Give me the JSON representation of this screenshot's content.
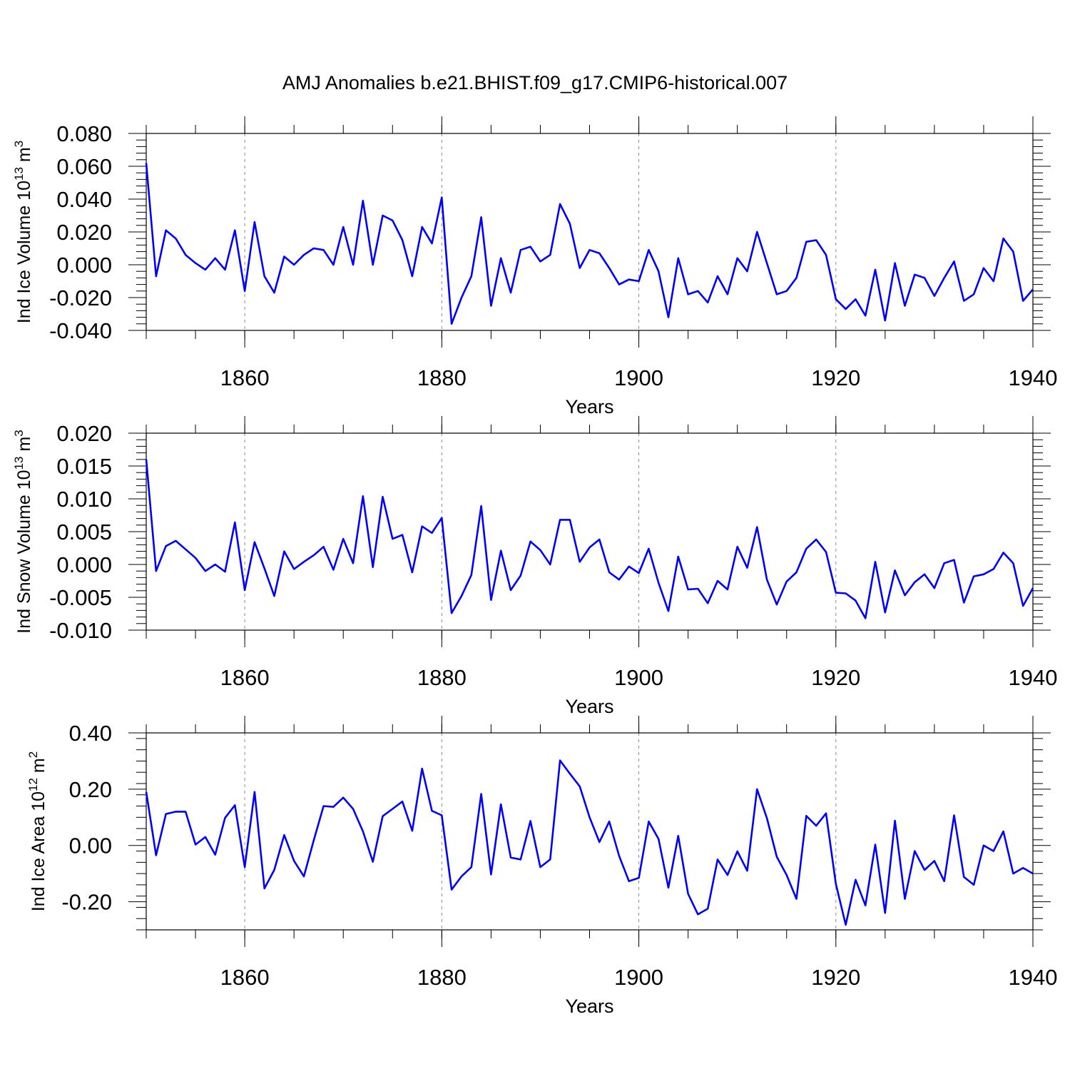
{
  "title": "AMJ Anomalies b.e21.BHIST.f09_g17.CMIP6-historical.007",
  "chart_data": [
    {
      "type": "line",
      "id": "ice-volume",
      "ylabel": "Ind Ice Volume 10",
      "ylabel_sup": "13",
      "ylabel_unit": " m",
      "ylabel_unit_sup": "3",
      "xlabel": "Years",
      "xlim": [
        1850,
        1940
      ],
      "ylim": [
        -0.04,
        0.08
      ],
      "yticks": [
        -0.04,
        -0.02,
        0.0,
        0.02,
        0.04,
        0.06,
        0.08
      ],
      "ytick_labels": [
        "-0.040",
        "-0.020",
        "0.000",
        "0.020",
        "0.040",
        "0.060",
        "0.080"
      ],
      "xticks": [
        1860,
        1880,
        1900,
        1920,
        1940
      ],
      "xtick_labels": [
        "1860",
        "1880",
        "1900",
        "1920",
        "1940"
      ],
      "grid": "dashed vertical at major x ticks",
      "x_start": 1850,
      "series": [
        {
          "name": "Ind Ice Volume",
          "color": "#0000ff",
          "values": [
            0.062,
            -0.007,
            0.021,
            0.016,
            0.006,
            0.001,
            -0.003,
            0.004,
            -0.003,
            0.021,
            -0.016,
            0.026,
            -0.007,
            -0.017,
            0.005,
            0.0,
            0.006,
            0.01,
            0.009,
            0.0,
            0.023,
            0.0,
            0.039,
            0.0,
            0.03,
            0.027,
            0.015,
            -0.007,
            0.023,
            0.013,
            0.041,
            -0.036,
            -0.02,
            -0.007,
            0.029,
            -0.025,
            0.004,
            -0.017,
            0.009,
            0.011,
            0.002,
            0.006,
            0.037,
            0.025,
            -0.002,
            0.009,
            0.007,
            -0.002,
            -0.012,
            -0.009,
            -0.01,
            0.009,
            -0.004,
            -0.032,
            0.004,
            -0.018,
            -0.016,
            -0.023,
            -0.007,
            -0.018,
            0.004,
            -0.004,
            0.02,
            0.001,
            -0.018,
            -0.016,
            -0.008,
            0.014,
            0.015,
            0.006,
            -0.021,
            -0.027,
            -0.021,
            -0.031,
            -0.003,
            -0.034,
            0.001,
            -0.025,
            -0.006,
            -0.008,
            -0.019,
            -0.008,
            0.002,
            -0.022,
            -0.018,
            -0.002,
            -0.01,
            0.016,
            0.008,
            -0.022,
            -0.015
          ]
        }
      ]
    },
    {
      "type": "line",
      "id": "snow-volume",
      "ylabel": "Ind Snow Volume 10",
      "ylabel_sup": "13",
      "ylabel_unit": " m",
      "ylabel_unit_sup": "3",
      "xlabel": "Years",
      "xlim": [
        1850,
        1940
      ],
      "ylim": [
        -0.01,
        0.02
      ],
      "yticks": [
        -0.01,
        -0.005,
        0.0,
        0.005,
        0.01,
        0.015,
        0.02
      ],
      "ytick_labels": [
        "-0.010",
        "-0.005",
        "0.000",
        "0.005",
        "0.010",
        "0.015",
        "0.020"
      ],
      "xticks": [
        1860,
        1880,
        1900,
        1920,
        1940
      ],
      "xtick_labels": [
        "1860",
        "1880",
        "1900",
        "1920",
        "1940"
      ],
      "grid": "dashed vertical at major x ticks",
      "x_start": 1850,
      "series": [
        {
          "name": "Ind Snow Volume",
          "color": "#0000ff",
          "values": [
            0.016,
            -0.001,
            0.0028,
            0.0036,
            0.0023,
            0.001,
            -0.001,
            0.0,
            -0.0011,
            0.0064,
            -0.0039,
            0.0034,
            -0.0006,
            -0.0048,
            0.002,
            -0.0007,
            0.0004,
            0.0014,
            0.0027,
            -0.0008,
            0.0039,
            0.0002,
            0.0104,
            -0.0004,
            0.0103,
            0.0039,
            0.0045,
            -0.0012,
            0.0058,
            0.0048,
            0.0071,
            -0.0074,
            -0.0048,
            -0.0016,
            0.0089,
            -0.0054,
            0.0021,
            -0.0039,
            -0.0017,
            0.0035,
            0.0022,
            0.0,
            0.0068,
            0.0068,
            0.0004,
            0.0026,
            0.0038,
            -0.0012,
            -0.0023,
            -0.0003,
            -0.0013,
            0.0024,
            -0.0028,
            -0.0071,
            0.0012,
            -0.0038,
            -0.0037,
            -0.0059,
            -0.0025,
            -0.0038,
            0.0027,
            -0.0005,
            0.0057,
            -0.0023,
            -0.0061,
            -0.0026,
            -0.0012,
            0.0024,
            0.0038,
            0.0019,
            -0.0043,
            -0.0044,
            -0.0055,
            -0.0082,
            0.0004,
            -0.0073,
            -0.0009,
            -0.0047,
            -0.0027,
            -0.0015,
            -0.0036,
            0.0002,
            0.0007,
            -0.0058,
            -0.0018,
            -0.0015,
            -0.0007,
            0.0018,
            0.0002,
            -0.0063,
            -0.0036
          ]
        }
      ]
    },
    {
      "type": "line",
      "id": "ice-area",
      "ylabel": "Ind Ice Area 10",
      "ylabel_sup": "12",
      "ylabel_unit": " m",
      "ylabel_unit_sup": "2",
      "xlabel": "Years",
      "xlim": [
        1850,
        1940
      ],
      "ylim": [
        -0.3,
        0.4
      ],
      "yticks": [
        -0.2,
        0.0,
        0.2,
        0.4
      ],
      "ytick_labels": [
        "-0.20",
        "0.00",
        "0.20",
        "0.40"
      ],
      "xticks": [
        1860,
        1880,
        1900,
        1920,
        1940
      ],
      "xtick_labels": [
        "1860",
        "1880",
        "1900",
        "1920",
        "1940"
      ],
      "grid": "dashed vertical at major x ticks",
      "x_start": 1850,
      "series": [
        {
          "name": "Ind Ice Area",
          "color": "#0000ff",
          "values": [
            0.19,
            -0.035,
            0.112,
            0.12,
            0.12,
            0.003,
            0.03,
            -0.033,
            0.098,
            0.143,
            -0.077,
            0.19,
            -0.153,
            -0.087,
            0.037,
            -0.055,
            -0.11,
            0.018,
            0.14,
            0.137,
            0.17,
            0.13,
            0.05,
            -0.058,
            0.104,
            0.13,
            0.156,
            0.052,
            0.273,
            0.123,
            0.107,
            -0.157,
            -0.11,
            -0.077,
            0.183,
            -0.103,
            0.146,
            -0.043,
            -0.05,
            0.087,
            -0.077,
            -0.05,
            0.302,
            0.255,
            0.21,
            0.1,
            0.012,
            0.085,
            -0.037,
            -0.127,
            -0.115,
            0.085,
            0.023,
            -0.15,
            0.034,
            -0.172,
            -0.245,
            -0.225,
            -0.05,
            -0.105,
            -0.021,
            -0.09,
            0.2,
            0.097,
            -0.04,
            -0.105,
            -0.19,
            0.105,
            0.07,
            0.114,
            -0.137,
            -0.282,
            -0.122,
            -0.213,
            0.003,
            -0.24,
            0.088,
            -0.19,
            -0.02,
            -0.087,
            -0.055,
            -0.127,
            0.107,
            -0.112,
            -0.14,
            0.0,
            -0.02,
            0.05,
            -0.1,
            -0.08,
            -0.1
          ]
        }
      ]
    }
  ]
}
